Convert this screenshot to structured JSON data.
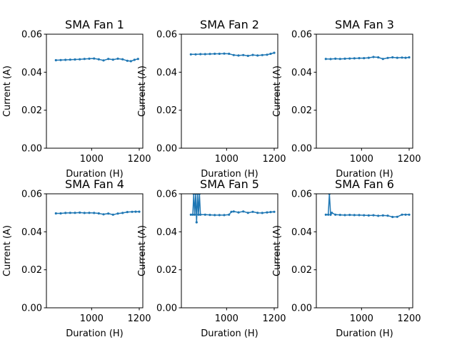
{
  "figure": {
    "grid": false,
    "series_color": "#1f77b4"
  },
  "chart_data": [
    {
      "type": "line",
      "title": "SMA Fan 1",
      "xlabel": "Duration (H)",
      "ylabel": "Current (A)",
      "xlim": [
        810,
        1215
      ],
      "ylim": [
        0,
        0.06
      ],
      "xticks": [
        1000,
        1200
      ],
      "xtick_labels": [
        "1000",
        "1200"
      ],
      "yticks": [
        0,
        0.02,
        0.04,
        0.06
      ],
      "ytick_labels": [
        "0.00",
        "0.02",
        "0.04",
        "0.06"
      ],
      "x": [
        850,
        870,
        890,
        910,
        930,
        950,
        970,
        990,
        1010,
        1030,
        1050,
        1070,
        1090,
        1110,
        1130,
        1150,
        1165,
        1180,
        1195
      ],
      "y": [
        0.0463,
        0.0464,
        0.0465,
        0.0466,
        0.0467,
        0.0468,
        0.047,
        0.0471,
        0.0472,
        0.0468,
        0.0462,
        0.047,
        0.0466,
        0.0471,
        0.0468,
        0.046,
        0.0458,
        0.0465,
        0.047
      ]
    },
    {
      "type": "line",
      "title": "SMA Fan 2",
      "xlabel": "Duration (H)",
      "ylabel": "Current (A)",
      "xlim": [
        810,
        1215
      ],
      "ylim": [
        0,
        0.06
      ],
      "xticks": [
        1000,
        1200
      ],
      "xtick_labels": [
        "1000",
        "1200"
      ],
      "yticks": [
        0,
        0.02,
        0.04,
        0.06
      ],
      "ytick_labels": [
        "0.00",
        "0.02",
        "0.04",
        "0.06"
      ],
      "x": [
        850,
        870,
        890,
        910,
        930,
        950,
        970,
        990,
        1010,
        1030,
        1050,
        1070,
        1090,
        1110,
        1130,
        1150,
        1170,
        1185,
        1200
      ],
      "y": [
        0.0494,
        0.0494,
        0.0495,
        0.0495,
        0.0496,
        0.0497,
        0.0497,
        0.0498,
        0.0497,
        0.049,
        0.0488,
        0.049,
        0.0486,
        0.0491,
        0.0488,
        0.049,
        0.0492,
        0.0497,
        0.0502
      ]
    },
    {
      "type": "line",
      "title": "SMA Fan 3",
      "xlabel": "Duration (H)",
      "ylabel": "Current (A)",
      "xlim": [
        810,
        1215
      ],
      "ylim": [
        0,
        0.06
      ],
      "xticks": [
        1000,
        1200
      ],
      "xtick_labels": [
        "1000",
        "1200"
      ],
      "yticks": [
        0,
        0.02,
        0.04,
        0.06
      ],
      "ytick_labels": [
        "0.00",
        "0.02",
        "0.04",
        "0.06"
      ],
      "x": [
        850,
        870,
        890,
        910,
        930,
        950,
        970,
        990,
        1010,
        1030,
        1050,
        1070,
        1090,
        1110,
        1130,
        1150,
        1170,
        1185,
        1200
      ],
      "y": [
        0.047,
        0.0469,
        0.0471,
        0.047,
        0.0471,
        0.0472,
        0.0473,
        0.0474,
        0.0474,
        0.0476,
        0.048,
        0.0478,
        0.047,
        0.0475,
        0.0478,
        0.0476,
        0.0477,
        0.0476,
        0.0478
      ]
    },
    {
      "type": "line",
      "title": "SMA Fan 4",
      "xlabel": "Duration (H)",
      "ylabel": "Current (A)",
      "xlim": [
        810,
        1215
      ],
      "ylim": [
        0,
        0.06
      ],
      "xticks": [
        1000,
        1200
      ],
      "xtick_labels": [
        "1000",
        "1200"
      ],
      "yticks": [
        0,
        0.02,
        0.04,
        0.06
      ],
      "ytick_labels": [
        "0.00",
        "0.02",
        "0.04",
        "0.06"
      ],
      "x": [
        850,
        870,
        890,
        910,
        930,
        950,
        970,
        990,
        1010,
        1030,
        1050,
        1070,
        1090,
        1110,
        1130,
        1150,
        1170,
        1185,
        1200
      ],
      "y": [
        0.0497,
        0.0497,
        0.0499,
        0.05,
        0.05,
        0.0501,
        0.0499,
        0.05,
        0.0499,
        0.0497,
        0.0492,
        0.0496,
        0.049,
        0.0496,
        0.0499,
        0.0504,
        0.0505,
        0.0506,
        0.0506
      ]
    },
    {
      "type": "line",
      "title": "SMA Fan 5",
      "xlabel": "Duration (H)",
      "ylabel": "Current (A)",
      "xlim": [
        810,
        1215
      ],
      "ylim": [
        0,
        0.06
      ],
      "xticks": [
        1000,
        1200
      ],
      "xtick_labels": [
        "1000",
        "1200"
      ],
      "yticks": [
        0,
        0.02,
        0.04,
        0.06
      ],
      "ytick_labels": [
        "0.00",
        "0.02",
        "0.04",
        "0.06"
      ],
      "x": [
        850,
        858,
        862,
        866,
        870,
        874,
        878,
        882,
        886,
        890,
        910,
        930,
        950,
        970,
        990,
        1010,
        1020,
        1030,
        1050,
        1070,
        1090,
        1110,
        1130,
        1150,
        1170,
        1185,
        1200
      ],
      "y": [
        0.049,
        0.049,
        0.06,
        0.049,
        0.06,
        0.045,
        0.06,
        0.049,
        0.06,
        0.049,
        0.049,
        0.0489,
        0.0488,
        0.0488,
        0.0488,
        0.049,
        0.0505,
        0.0507,
        0.0502,
        0.0507,
        0.05,
        0.0505,
        0.05,
        0.0499,
        0.0502,
        0.0504,
        0.0505
      ]
    },
    {
      "type": "line",
      "title": "SMA Fan 6",
      "xlabel": "Duration (H)",
      "ylabel": "Current (A)",
      "xlim": [
        810,
        1215
      ],
      "ylim": [
        0,
        0.06
      ],
      "xticks": [
        1000,
        1200
      ],
      "xtick_labels": [
        "1000",
        "1200"
      ],
      "yticks": [
        0,
        0.02,
        0.04,
        0.06
      ],
      "ytick_labels": [
        "0.00",
        "0.02",
        "0.04",
        "0.06"
      ],
      "x": [
        850,
        860,
        865,
        870,
        875,
        890,
        910,
        930,
        950,
        970,
        990,
        1010,
        1030,
        1050,
        1070,
        1090,
        1110,
        1130,
        1150,
        1170,
        1185,
        1200
      ],
      "y": [
        0.049,
        0.049,
        0.06,
        0.049,
        0.05,
        0.049,
        0.0489,
        0.0488,
        0.0489,
        0.0488,
        0.0488,
        0.0487,
        0.0486,
        0.0487,
        0.0484,
        0.0486,
        0.0485,
        0.0478,
        0.0479,
        0.049,
        0.049,
        0.049
      ]
    }
  ]
}
